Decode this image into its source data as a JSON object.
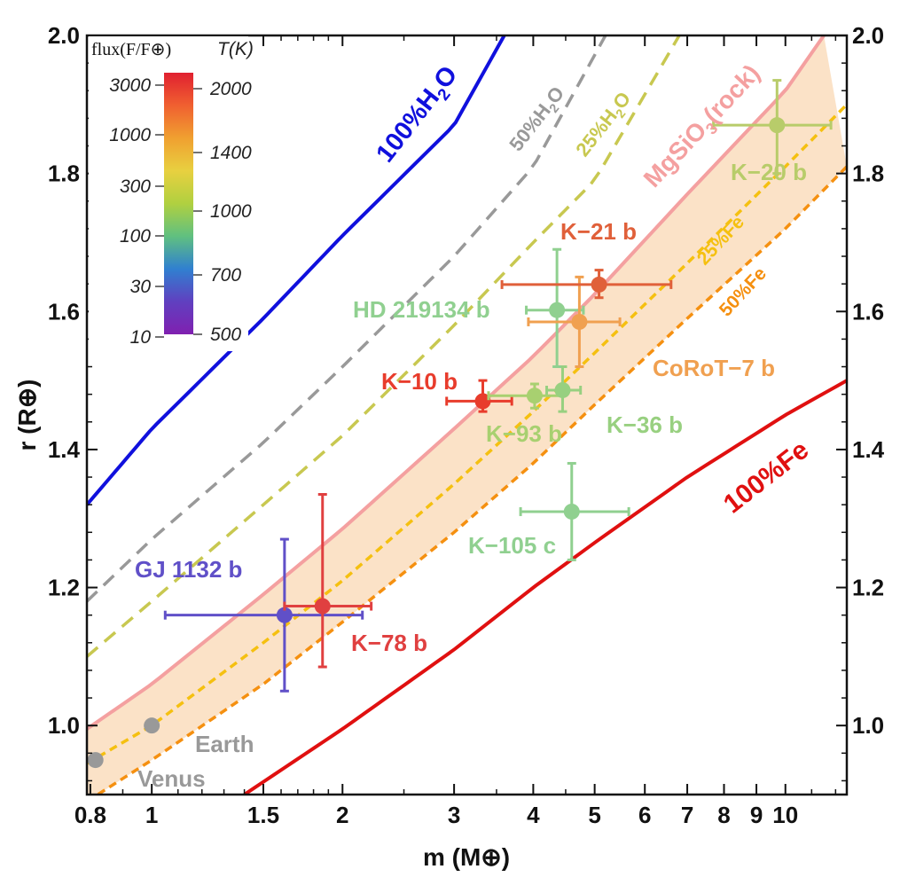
{
  "chart_data": {
    "type": "scatter",
    "xlabel": "m (M⊕)",
    "ylabel": "r (R⊕)",
    "xscale": "log",
    "xlim": [
      0.79,
      12.5
    ],
    "ylim": [
      0.9,
      2.0
    ],
    "xticks": [
      {
        "v": 0.8,
        "label": "0.8"
      },
      {
        "v": 1,
        "label": "1"
      },
      {
        "v": 1.5,
        "label": "1.5"
      },
      {
        "v": 2,
        "label": "2"
      },
      {
        "v": 3,
        "label": "3"
      },
      {
        "v": 4,
        "label": "4"
      },
      {
        "v": 5,
        "label": "5"
      },
      {
        "v": 6,
        "label": "6"
      },
      {
        "v": 7,
        "label": "7"
      },
      {
        "v": 8,
        "label": "8"
      },
      {
        "v": 9,
        "label": "9"
      },
      {
        "v": 10,
        "label": "10"
      }
    ],
    "yticks": [
      {
        "v": 1.0,
        "label": "1.0"
      },
      {
        "v": 1.2,
        "label": "1.2"
      },
      {
        "v": 1.4,
        "label": "1.4"
      },
      {
        "v": 1.6,
        "label": "1.6"
      },
      {
        "v": 1.8,
        "label": "1.8"
      },
      {
        "v": 2.0,
        "label": "2.0"
      }
    ],
    "curves": [
      {
        "name": "100%H2O",
        "label_main": "100%H",
        "label_sub": "2",
        "label_tail": "O",
        "color": "#1010dd",
        "style": "solid",
        "points": [
          [
            0.79,
            1.32
          ],
          [
            1.0,
            1.43
          ],
          [
            1.5,
            1.59
          ],
          [
            2.0,
            1.71
          ],
          [
            3.0,
            1.87
          ],
          [
            3.6,
            2.0
          ]
        ]
      },
      {
        "name": "50%H2O",
        "label_main": "50%H",
        "label_sub": "2",
        "label_tail": "O",
        "color": "#999999",
        "style": "dashed",
        "points": [
          [
            0.79,
            1.18
          ],
          [
            1.0,
            1.27
          ],
          [
            1.5,
            1.41
          ],
          [
            2.0,
            1.52
          ],
          [
            3.0,
            1.68
          ],
          [
            4.0,
            1.81
          ],
          [
            5.2,
            2.0
          ]
        ]
      },
      {
        "name": "25%H2O",
        "label_main": "25%H",
        "label_sub": "2",
        "label_tail": "O",
        "color": "#c8c850",
        "style": "dashed",
        "points": [
          [
            0.79,
            1.1
          ],
          [
            1.0,
            1.18
          ],
          [
            1.5,
            1.32
          ],
          [
            2.0,
            1.42
          ],
          [
            3.0,
            1.58
          ],
          [
            4.0,
            1.7
          ],
          [
            5.0,
            1.79
          ],
          [
            6.8,
            2.0
          ]
        ]
      },
      {
        "name": "MgSiO3(rock)",
        "label_main": "MgSiO",
        "label_sub": "3",
        "label_tail": "(rock)",
        "color": "#f4a0a0",
        "style": "solid",
        "points": [
          [
            0.79,
            0.995
          ],
          [
            1.0,
            1.06
          ],
          [
            1.5,
            1.19
          ],
          [
            2.0,
            1.285
          ],
          [
            3.0,
            1.43
          ],
          [
            4.0,
            1.535
          ],
          [
            5.0,
            1.625
          ],
          [
            7.0,
            1.77
          ],
          [
            10.0,
            1.92
          ],
          [
            11.5,
            2.0
          ]
        ]
      },
      {
        "name": "25%Fe",
        "label_main": "25%Fe",
        "label_sub": "",
        "label_tail": "",
        "color": "#f5c010",
        "style": "dashed",
        "points": [
          [
            0.79,
            0.945
          ],
          [
            1.0,
            1.0
          ],
          [
            1.5,
            1.12
          ],
          [
            2.0,
            1.21
          ],
          [
            3.0,
            1.35
          ],
          [
            4.0,
            1.455
          ],
          [
            5.0,
            1.54
          ],
          [
            7.0,
            1.67
          ],
          [
            10.0,
            1.81
          ],
          [
            12.5,
            1.9
          ]
        ]
      },
      {
        "name": "50%Fe",
        "label_main": "50%Fe",
        "label_sub": "",
        "label_tail": "",
        "color": "#f59010",
        "style": "dashed",
        "points": [
          [
            0.79,
            0.89
          ],
          [
            1.0,
            0.95
          ],
          [
            1.5,
            1.06
          ],
          [
            2.0,
            1.15
          ],
          [
            3.0,
            1.28
          ],
          [
            4.0,
            1.38
          ],
          [
            5.0,
            1.465
          ],
          [
            7.0,
            1.59
          ],
          [
            10.0,
            1.72
          ],
          [
            12.5,
            1.81
          ]
        ]
      },
      {
        "name": "100%Fe",
        "label_main": "100%Fe",
        "label_sub": "",
        "label_tail": "",
        "color": "#e01010",
        "style": "solid",
        "points": [
          [
            1.4,
            0.9
          ],
          [
            2.0,
            0.995
          ],
          [
            3.0,
            1.11
          ],
          [
            4.0,
            1.2
          ],
          [
            5.0,
            1.265
          ],
          [
            7.0,
            1.36
          ],
          [
            10.0,
            1.45
          ],
          [
            12.5,
            1.5
          ]
        ]
      }
    ],
    "band": {
      "between": [
        "MgSiO3(rock)",
        "50%Fe"
      ],
      "color": "#f9d8b4"
    },
    "planets": [
      {
        "name": "Venus",
        "label": "Venus",
        "m": 0.815,
        "r": 0.95,
        "color": "#999999"
      },
      {
        "name": "Earth",
        "label": "Earth",
        "m": 1.0,
        "r": 1.0,
        "color": "#999999"
      },
      {
        "name": "GJ 1132 b",
        "label": "GJ 1132 b",
        "m": 1.62,
        "r": 1.16,
        "m_lo": 1.05,
        "m_hi": 2.15,
        "r_lo": 1.05,
        "r_hi": 1.27,
        "color": "#6050c8"
      },
      {
        "name": "K-78 b",
        "label": "K−78 b",
        "m": 1.86,
        "r": 1.173,
        "m_lo": 1.62,
        "m_hi": 2.22,
        "r_lo": 1.085,
        "r_hi": 1.335,
        "color": "#e04040"
      },
      {
        "name": "K-10 b",
        "label": "K−10 b",
        "m": 3.33,
        "r": 1.47,
        "m_lo": 2.92,
        "m_hi": 3.7,
        "r_lo": 1.455,
        "r_hi": 1.5,
        "color": "#e83c2c"
      },
      {
        "name": "K-93 b",
        "label": "K−93 b",
        "m": 4.02,
        "r": 1.478,
        "m_lo": 3.4,
        "m_hi": 4.45,
        "r_lo": 1.46,
        "r_hi": 1.495,
        "color": "#a8d070"
      },
      {
        "name": "K-36 b",
        "label": "K−36 b",
        "m": 4.45,
        "r": 1.486,
        "m_lo": 4.2,
        "m_hi": 4.75,
        "r_lo": 1.455,
        "r_hi": 1.52,
        "color": "#98d080"
      },
      {
        "name": "HD 219134 b",
        "label": "HD 219134 b",
        "m": 4.36,
        "r": 1.602,
        "m_lo": 3.9,
        "m_hi": 4.8,
        "r_lo": 1.52,
        "r_hi": 1.69,
        "color": "#90d090"
      },
      {
        "name": "CoRoT-7 b",
        "label": "CoRoT−7 b",
        "m": 4.73,
        "r": 1.585,
        "m_lo": 3.93,
        "m_hi": 5.48,
        "r_lo": 1.52,
        "r_hi": 1.65,
        "color": "#f0a050"
      },
      {
        "name": "K-21 b",
        "label": "K−21 b",
        "m": 5.08,
        "r": 1.639,
        "m_lo": 3.57,
        "m_hi": 6.6,
        "r_lo": 1.62,
        "r_hi": 1.66,
        "color": "#e0603a"
      },
      {
        "name": "K-105 c",
        "label": "K−105 c",
        "m": 4.6,
        "r": 1.31,
        "m_lo": 3.82,
        "m_hi": 5.66,
        "r_lo": 1.24,
        "r_hi": 1.38,
        "color": "#90d090"
      },
      {
        "name": "K-20 b",
        "label": "K−20 b",
        "m": 9.7,
        "r": 1.87,
        "m_lo": 7.7,
        "m_hi": 11.8,
        "r_lo": 1.8,
        "r_hi": 1.935,
        "color": "#b8cc6a"
      }
    ],
    "colorbar": {
      "flux_title": "flux(F/F⊕)",
      "temp_title": "T(K)",
      "flux_ticks": [
        "3000",
        "1000",
        "300",
        "100",
        "30",
        "10"
      ],
      "temp_ticks": [
        "2000",
        "1400",
        "1000",
        "700",
        "500"
      ],
      "colors": [
        "#e02030",
        "#f06030",
        "#f0a030",
        "#e8d040",
        "#b0d040",
        "#60c080",
        "#3080d0",
        "#6040c0",
        "#8020b0"
      ]
    }
  }
}
